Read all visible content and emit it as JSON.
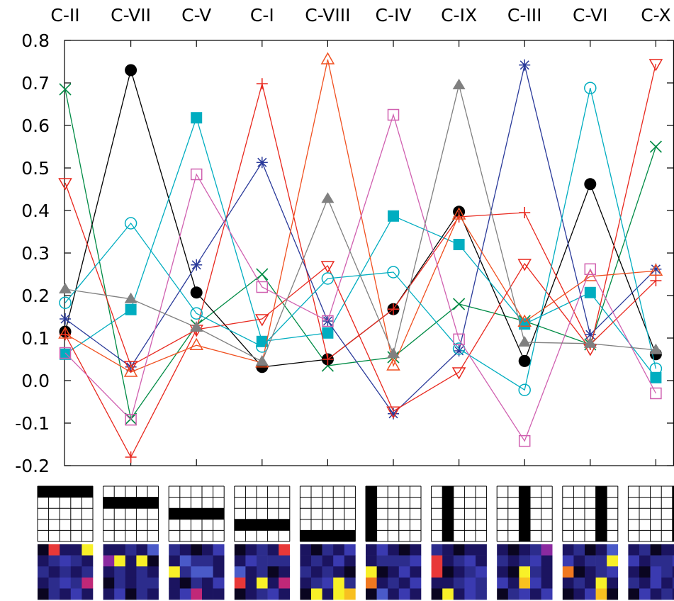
{
  "chart_data": {
    "type": "line",
    "title": "",
    "xlabel": "",
    "ylabel": "",
    "categories": [
      "C-II",
      "C-VII",
      "C-V",
      "C-I",
      "C-VIII",
      "C-IV",
      "C-IX",
      "C-III",
      "C-VI",
      "C-X"
    ],
    "ylim": [
      -0.2,
      0.8
    ],
    "yticks": [
      "0.8",
      "0.7",
      "0.6",
      "0.5",
      "0.4",
      "0.3",
      "0.2",
      "0.1",
      "0.0",
      "-0.1",
      "-0.2"
    ],
    "ytick_values": [
      0.8,
      0.7,
      0.6,
      0.5,
      0.4,
      0.3,
      0.2,
      0.1,
      0.0,
      -0.1,
      -0.2
    ],
    "grid": false,
    "legend": "none",
    "series": [
      {
        "color": "#008b45",
        "marker": "x",
        "values": [
          0.685,
          -0.09,
          0.13,
          0.25,
          0.035,
          0.055,
          0.18,
          0.14,
          0.085,
          0.55
        ]
      },
      {
        "color": "#000000",
        "marker": "circle-filled",
        "values": [
          0.115,
          0.73,
          0.207,
          0.032,
          0.05,
          0.168,
          0.397,
          0.046,
          0.462,
          0.062
        ]
      },
      {
        "color": "#00adc0",
        "marker": "square-filled",
        "values": [
          0.062,
          0.167,
          0.618,
          0.092,
          0.112,
          0.387,
          0.32,
          0.133,
          0.207,
          0.007
        ]
      },
      {
        "color": "#e8281e",
        "marker": "plus",
        "values": [
          0.108,
          -0.18,
          0.12,
          0.698,
          0.05,
          0.168,
          0.385,
          0.395,
          0.085,
          0.235
        ]
      },
      {
        "color": "#2a3a9a",
        "marker": "asterisk",
        "values": [
          0.145,
          0.032,
          0.272,
          0.513,
          0.14,
          -0.078,
          0.07,
          0.742,
          0.108,
          0.262
        ]
      },
      {
        "color": "#f05020",
        "marker": "triangle-up-open",
        "values": [
          0.11,
          0.02,
          0.083,
          0.042,
          0.755,
          0.035,
          0.39,
          0.138,
          0.245,
          0.258
        ]
      },
      {
        "color": "#e8281e",
        "marker": "triangle-down-open",
        "values": [
          0.465,
          0.035,
          0.12,
          0.145,
          0.27,
          -0.072,
          0.02,
          0.275,
          0.075,
          0.745
        ]
      },
      {
        "color": "#00adc0",
        "marker": "circle-open",
        "values": [
          0.183,
          0.37,
          0.158,
          0.08,
          0.24,
          0.255,
          0.075,
          -0.022,
          0.688,
          0.028
        ]
      },
      {
        "color": "#d060b0",
        "marker": "square-open",
        "values": [
          0.065,
          -0.092,
          0.485,
          0.22,
          0.14,
          0.625,
          0.097,
          -0.142,
          0.262,
          -0.03
        ]
      },
      {
        "color": "#808080",
        "marker": "triangle-up-filled",
        "values": [
          0.215,
          0.192,
          0.125,
          0.045,
          0.428,
          0.063,
          0.695,
          0.09,
          0.087,
          0.072
        ]
      }
    ],
    "patterns": {
      "rows": 5,
      "cols": 5,
      "ink_color": "#000000",
      "items": [
        {
          "dir": "row",
          "index": 0
        },
        {
          "dir": "row",
          "index": 1
        },
        {
          "dir": "row",
          "index": 2
        },
        {
          "dir": "row",
          "index": 3
        },
        {
          "dir": "row",
          "index": 4
        },
        {
          "dir": "col",
          "index": 0
        },
        {
          "dir": "col",
          "index": 1
        },
        {
          "dir": "col",
          "index": 2
        },
        {
          "dir": "col",
          "index": 3
        },
        {
          "dir": "col",
          "index": 4
        }
      ]
    },
    "heatmaps": {
      "palette": [
        "#0a0520",
        "#1b1460",
        "#2c2c8c",
        "#3a3ab0",
        "#4a5ac8",
        "#8a2aa0",
        "#c02878",
        "#e83838",
        "#f07820",
        "#f8c020",
        "#f8f028"
      ],
      "cells": [
        [
          [
            0,
            7,
            1,
            1,
            10
          ],
          [
            1,
            2,
            3,
            2,
            1
          ],
          [
            2,
            1,
            2,
            1,
            2
          ],
          [
            1,
            2,
            3,
            2,
            6
          ],
          [
            0,
            2,
            1,
            3,
            1
          ]
        ],
        [
          [
            1,
            1,
            2,
            1,
            4
          ],
          [
            5,
            10,
            1,
            10,
            0
          ],
          [
            1,
            2,
            1,
            2,
            1
          ],
          [
            0,
            2,
            1,
            2,
            2
          ],
          [
            1,
            3,
            0,
            2,
            1
          ]
        ],
        [
          [
            2,
            1,
            0,
            1,
            3
          ],
          [
            1,
            4,
            2,
            2,
            1
          ],
          [
            10,
            2,
            4,
            4,
            1
          ],
          [
            1,
            0,
            2,
            1,
            3
          ],
          [
            1,
            3,
            6,
            1,
            1
          ]
        ],
        [
          [
            0,
            1,
            2,
            1,
            7
          ],
          [
            1,
            3,
            2,
            2,
            2
          ],
          [
            4,
            1,
            2,
            0,
            1
          ],
          [
            7,
            1,
            10,
            1,
            6
          ],
          [
            0,
            1,
            2,
            3,
            1
          ]
        ],
        [
          [
            1,
            0,
            2,
            1,
            3
          ],
          [
            1,
            2,
            1,
            3,
            1
          ],
          [
            2,
            1,
            2,
            1,
            0
          ],
          [
            1,
            2,
            3,
            10,
            2
          ],
          [
            0,
            10,
            1,
            10,
            9
          ]
        ],
        [
          [
            1,
            3,
            1,
            0,
            1
          ],
          [
            1,
            2,
            2,
            2,
            3
          ],
          [
            10,
            0,
            1,
            3,
            1
          ],
          [
            8,
            1,
            2,
            1,
            3
          ],
          [
            0,
            4,
            1,
            3,
            1
          ]
        ],
        [
          [
            2,
            1,
            0,
            1,
            1
          ],
          [
            7,
            1,
            2,
            3,
            1
          ],
          [
            7,
            0,
            1,
            2,
            3
          ],
          [
            1,
            1,
            2,
            3,
            2
          ],
          [
            0,
            10,
            1,
            3,
            2
          ]
        ],
        [
          [
            1,
            0,
            1,
            2,
            5
          ],
          [
            2,
            1,
            2,
            3,
            1
          ],
          [
            1,
            0,
            10,
            2,
            1
          ],
          [
            3,
            1,
            9,
            3,
            1
          ],
          [
            0,
            2,
            3,
            1,
            3
          ]
        ],
        [
          [
            1,
            2,
            0,
            1,
            4
          ],
          [
            3,
            1,
            2,
            2,
            10
          ],
          [
            8,
            0,
            1,
            2,
            3
          ],
          [
            1,
            2,
            1,
            10,
            1
          ],
          [
            0,
            1,
            3,
            9,
            0
          ]
        ],
        [
          [
            1,
            2,
            0,
            1,
            1
          ],
          [
            3,
            1,
            2,
            2,
            3
          ],
          [
            1,
            0,
            3,
            2,
            1
          ],
          [
            2,
            1,
            3,
            1,
            2
          ],
          [
            0,
            3,
            1,
            2,
            1
          ]
        ]
      ]
    }
  }
}
